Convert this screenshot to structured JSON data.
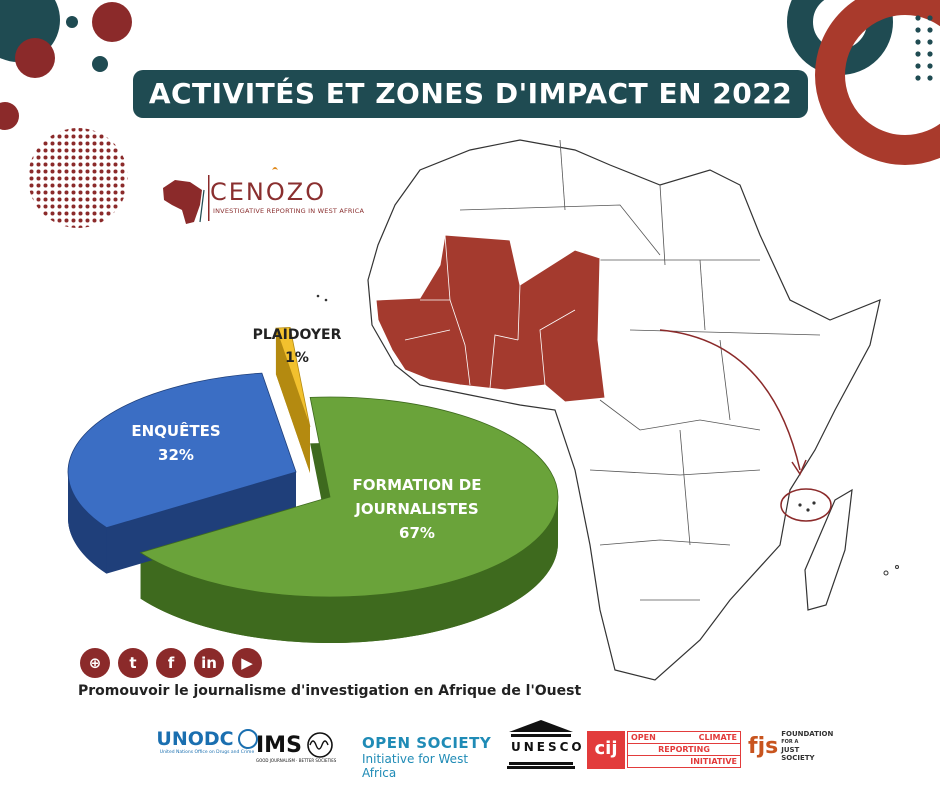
{
  "title": "ACTIVITÉS ET ZONES D'IMPACT EN 2022",
  "logo": {
    "name": "CENOZO",
    "tagline": "INVESTIGATIVE REPORTING IN WEST AFRICA"
  },
  "tagline": "Promouvoir le journalisme d'investigation en Afrique de l'Ouest",
  "social": [
    {
      "name": "website",
      "icon": "globe-icon",
      "glyph": "⊕"
    },
    {
      "name": "twitter",
      "icon": "twitter-icon",
      "glyph": "t"
    },
    {
      "name": "facebook",
      "icon": "facebook-icon",
      "glyph": "f"
    },
    {
      "name": "linkedin",
      "icon": "linkedin-icon",
      "glyph": "in"
    },
    {
      "name": "youtube",
      "icon": "youtube-icon",
      "glyph": "▶"
    }
  ],
  "partners": {
    "unodc": {
      "name": "UNODC",
      "sub": "United Nations Office on Drugs and Crime"
    },
    "ims": {
      "name": "IMS",
      "sub": "GOOD JOURNALISM · BETTER SOCIETIES"
    },
    "osiwa": {
      "name": "OPEN SOCIETY",
      "sub": "Initiative for West Africa"
    },
    "unesco": {
      "name": "UNESCO"
    },
    "cij": {
      "name": "cij"
    },
    "ocri": {
      "line1a": "OPEN",
      "line1b": "CLIMATE",
      "line2": "REPORTING",
      "line3": "INITIATIVE"
    },
    "fjs": {
      "name": "fjs",
      "line1": "FOUNDATION",
      "line2": "FOR A",
      "line3": "JUST",
      "line4": "SOCIETY"
    }
  },
  "colors": {
    "primary": "#8b2a2a",
    "dark": "#1f4b52",
    "green": "#6aa33a",
    "blue": "#3b6ec4",
    "yellow": "#f2c12e"
  },
  "chart_data": {
    "type": "pie",
    "style": "3d-exploded",
    "slices": [
      {
        "label": "FORMATION DE JOURNALISTES",
        "value": 67,
        "value_label": "67%",
        "color": "#6aa33a",
        "side": "#3e6a1e"
      },
      {
        "label": "ENQUÊTES",
        "value": 32,
        "value_label": "32%",
        "color": "#3b6ec4",
        "side": "#1f3f7a"
      },
      {
        "label": "PLAIDOYER",
        "value": 1,
        "value_label": "1%",
        "color": "#f2c12e",
        "side": "#b48a10"
      }
    ]
  }
}
